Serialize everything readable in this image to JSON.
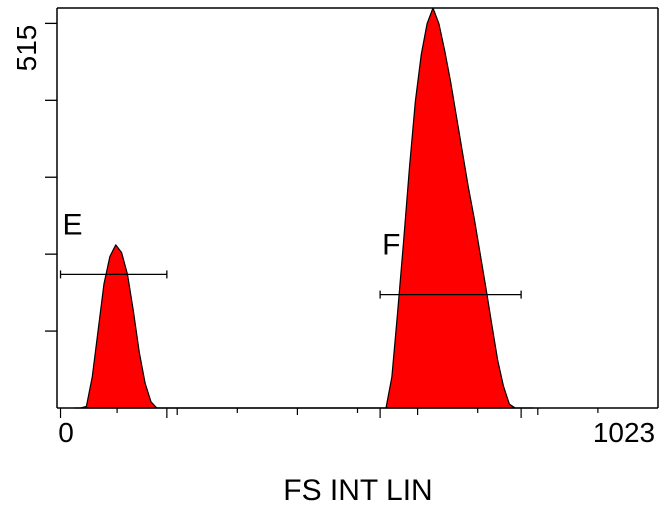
{
  "chart_data": {
    "type": "area",
    "xlabel": "FS INT LIN",
    "ylabel": "",
    "xlim": [
      0,
      1023
    ],
    "ylim": [
      0,
      515
    ],
    "x_tick_labels": [
      "0",
      "1023"
    ],
    "y_tick_labels": [
      "515"
    ],
    "fill_color": "#ff0000",
    "edge_color": "#000000",
    "grid": false,
    "series": [
      {
        "x": [
          30,
          40,
          50,
          60,
          70,
          80,
          90,
          100,
          110,
          120,
          130,
          140,
          150,
          160,
          170,
          180,
          190,
          200,
          210,
          220,
          230,
          240,
          250,
          260,
          270,
          280,
          290,
          300,
          310,
          320,
          330,
          340,
          350,
          360,
          370,
          380,
          390,
          400,
          410,
          420,
          430,
          440,
          450,
          460,
          470,
          480,
          490,
          500,
          510,
          520,
          530,
          540,
          550,
          560,
          570,
          580,
          590,
          600,
          610,
          620,
          630,
          640,
          650,
          660,
          670,
          680,
          690,
          700,
          710,
          720,
          730,
          740,
          750,
          760,
          770,
          780,
          790,
          800,
          810
        ],
        "y": [
          0,
          0,
          2,
          40,
          100,
          160,
          195,
          210,
          200,
          172,
          125,
          72,
          32,
          8,
          0,
          0,
          0,
          0,
          0,
          0,
          0,
          0,
          0,
          0,
          0,
          0,
          0,
          0,
          0,
          0,
          0,
          0,
          0,
          0,
          0,
          0,
          0,
          0,
          0,
          0,
          0,
          0,
          0,
          0,
          0,
          0,
          0,
          0,
          0,
          0,
          0,
          0,
          0,
          0,
          40,
          125,
          215,
          310,
          395,
          455,
          495,
          515,
          495,
          460,
          420,
          375,
          330,
          285,
          245,
          200,
          155,
          108,
          62,
          28,
          5,
          0,
          0,
          0,
          0
        ]
      }
    ],
    "gates": [
      {
        "label": "E",
        "x_start": 6,
        "x_end": 187,
        "y": 172
      },
      {
        "label": "F",
        "x_start": 550,
        "x_end": 790,
        "y": 146
      }
    ]
  }
}
